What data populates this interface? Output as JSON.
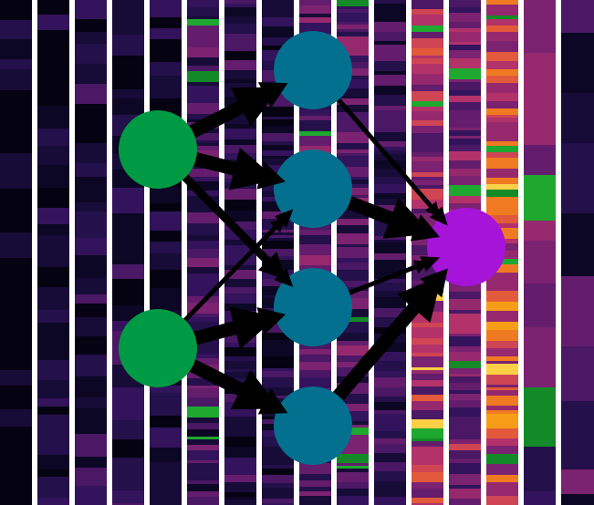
{
  "image": {
    "background_color": "#ffffff"
  },
  "palette": {
    "stripe_colors": [
      "#050212",
      "#0c0724",
      "#170b38",
      "#24104a",
      "#33135b",
      "#4a1864",
      "#641d6c",
      "#7b2270",
      "#96296d",
      "#b3326a",
      "#cf4554",
      "#e25a3b",
      "#f07a22",
      "#f69d18",
      "#fbd046",
      "#f7f396",
      "#138a27",
      "#1ea82f"
    ],
    "input_node_color": "#009a44",
    "hidden_node_color": "#03708f",
    "output_node_color": "#a514d8",
    "arrow_color": "#000000"
  },
  "diagram": {
    "layers": [
      {
        "name": "input",
        "nodes": [
          "i1",
          "i2"
        ]
      },
      {
        "name": "hidden",
        "nodes": [
          "h1",
          "h2",
          "h3",
          "h4"
        ]
      },
      {
        "name": "output",
        "nodes": [
          "o1"
        ]
      }
    ],
    "edges": [
      {
        "from": "i1",
        "to": "h1",
        "weight": "heavy"
      },
      {
        "from": "i1",
        "to": "h2",
        "weight": "heavy"
      },
      {
        "from": "i1",
        "to": "h3",
        "weight": "medium"
      },
      {
        "from": "i2",
        "to": "h2",
        "weight": "thin"
      },
      {
        "from": "i2",
        "to": "h3",
        "weight": "heavy"
      },
      {
        "from": "i2",
        "to": "h4",
        "weight": "heavy"
      },
      {
        "from": "h1",
        "to": "o1",
        "weight": "thin"
      },
      {
        "from": "h2",
        "to": "o1",
        "weight": "heavy"
      },
      {
        "from": "h3",
        "to": "o1",
        "weight": "thin"
      },
      {
        "from": "h4",
        "to": "o1",
        "weight": "heavy"
      }
    ]
  }
}
